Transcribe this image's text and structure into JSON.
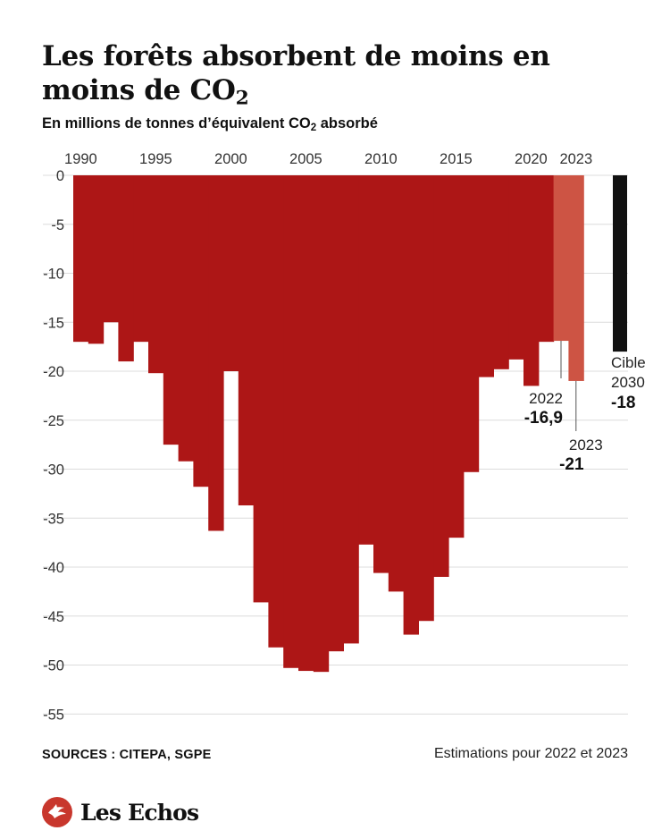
{
  "title": "Les forêts absorbent de moins en moins de CO",
  "title_sub": "2",
  "subtitle": "En millions de tonnes d’équivalent CO",
  "subtitle_sub": "2",
  "subtitle_tail": " absorbé",
  "source": "SOURCES : CITEPA, SGPE",
  "note": "Estimations pour 2022 et 2023",
  "logo_text": "Les Echos",
  "logo_icon": "les-echos-logo",
  "colors": {
    "historical": "#ad1616",
    "estimate": "#cd5444",
    "target": "#111111",
    "grid": "#dcdcdc",
    "logo": "#c8372d"
  },
  "chart_data": {
    "type": "bar",
    "title": "Les forêts absorbent de moins en moins de CO2",
    "subtitle": "En millions de tonnes d’équivalent CO2 absorbé",
    "x_tick_labels": [
      "1990",
      "1995",
      "2000",
      "2005",
      "2010",
      "2015",
      "2020",
      "2023"
    ],
    "y_ticks": [
      0,
      -5,
      -10,
      -15,
      -20,
      -25,
      -30,
      -35,
      -40,
      -45,
      -50,
      -55
    ],
    "ylim": [
      -55,
      0
    ],
    "grid": true,
    "series": [
      {
        "years": [
          1990,
          1991,
          1992,
          1993,
          1994,
          1995,
          1996,
          1997,
          1998,
          1999,
          2000,
          2001,
          2002,
          2003,
          2004,
          2005,
          2006,
          2007,
          2008,
          2009,
          2010,
          2011,
          2012,
          2013,
          2014,
          2015,
          2016,
          2017,
          2018,
          2019,
          2020,
          2021
        ],
        "values": [
          -17,
          -17.2,
          -15,
          -19,
          -17,
          -20.2,
          -27.5,
          -29.2,
          -31.8,
          -36.3,
          -20,
          -33.7,
          -43.6,
          -48.2,
          -50.3,
          -50.6,
          -50.7,
          -48.6,
          -47.8,
          -37.7,
          -40.6,
          -42.5,
          -46.9,
          -45.5,
          -41,
          -37,
          -30.3,
          -20.6,
          -19.8,
          -18.8,
          -21.5,
          -17
        ]
      },
      {
        "years": [
          2022,
          2023
        ],
        "values": [
          -16.9,
          -21
        ]
      },
      {
        "years": [
          2030
        ],
        "values": [
          -18
        ]
      }
    ],
    "annotations": [
      {
        "year_label": "2022",
        "value_label": "-16,9"
      },
      {
        "year_label": "2023",
        "value_label": "-21"
      },
      {
        "label": "Cible",
        "year_label": "2030",
        "value_label": "-18"
      }
    ]
  }
}
